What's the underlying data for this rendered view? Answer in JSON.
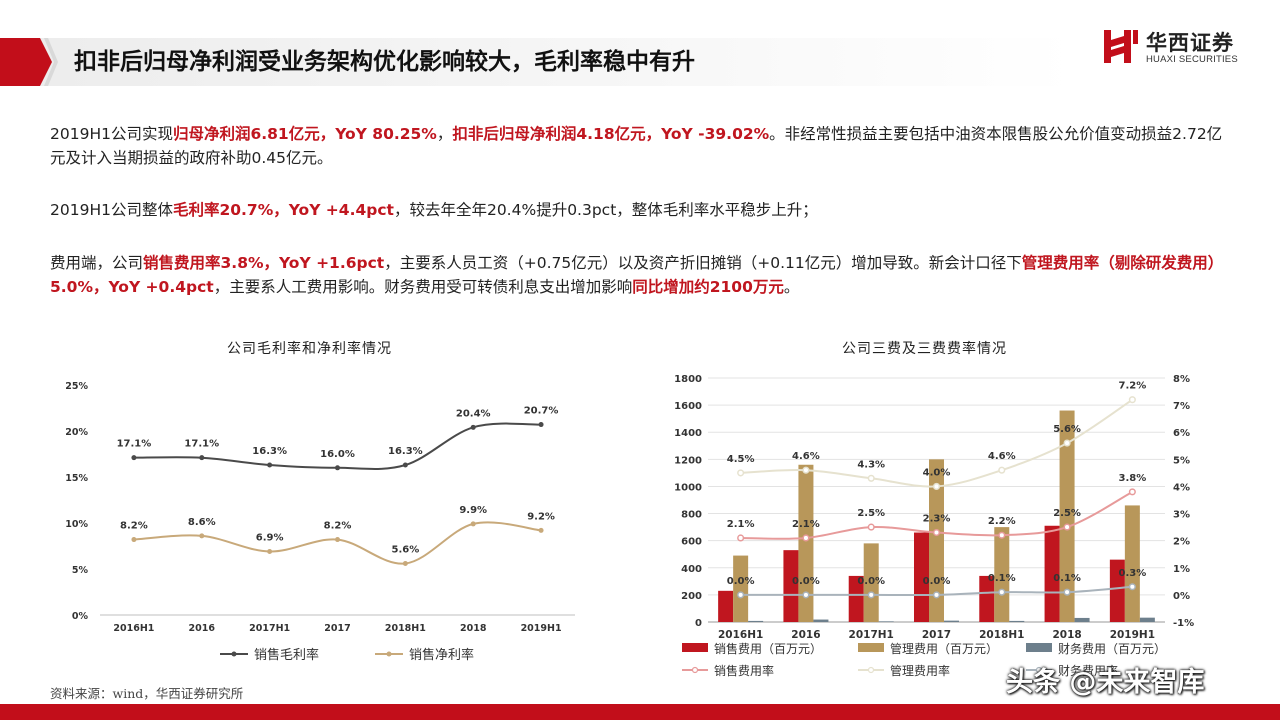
{
  "header": {
    "title": "扣非后归母净利润受业务架构优化影响较大，毛利率稳中有升",
    "brand_cn": "华西证券",
    "brand_en": "HUAXI SECURITIES",
    "accent_color": "#c20e1a"
  },
  "paragraphs": {
    "p1": [
      {
        "t": "2019H1公司实现",
        "h": false
      },
      {
        "t": "归母净利润6.81亿元，YoY 80.25%",
        "h": true
      },
      {
        "t": "，",
        "h": false
      },
      {
        "t": "扣非后归母净利润4.18亿元，YoY -39.02%",
        "h": true
      },
      {
        "t": "。非经常性损益主要包括中油资本限售股公允价值变动损益2.72亿元及计入当期损益的政府补助0.45亿元。",
        "h": false
      }
    ],
    "p2": [
      {
        "t": "2019H1公司整体",
        "h": false
      },
      {
        "t": "毛利率20.7%，YoY +4.4pct",
        "h": true
      },
      {
        "t": "，较去年全年20.4%提升0.3pct，整体毛利率水平稳步上升；",
        "h": false
      }
    ],
    "p3": [
      {
        "t": "费用端，公司",
        "h": false
      },
      {
        "t": "销售费用率3.8%，YoY +1.6pct",
        "h": true
      },
      {
        "t": "，主要系人员工资（+0.75亿元）以及资产折旧摊销（+0.11亿元）增加导致。新会计口径下",
        "h": false
      },
      {
        "t": "管理费用率（剔除研发费用）5.0%，YoY +0.4pct",
        "h": true
      },
      {
        "t": "，主要系人工费用影响。财务费用受可转债利息支出增加影响",
        "h": false
      },
      {
        "t": "同比增加约2100万元",
        "h": true
      },
      {
        "t": "。",
        "h": false
      }
    ]
  },
  "source": "资料来源：wind，华西证券研究所",
  "watermark": "头条 @未来智库",
  "chart_data": [
    {
      "type": "line",
      "title": "公司毛利率和净利率情况",
      "categories": [
        "2016H1",
        "2016",
        "2017H1",
        "2017",
        "2018H1",
        "2018",
        "2019H1"
      ],
      "series": [
        {
          "name": "销售毛利率",
          "values": [
            17.1,
            17.1,
            16.3,
            16.0,
            16.3,
            20.4,
            20.7
          ],
          "labels": [
            "17.1%",
            "17.1%",
            "16.3%",
            "16.0%",
            "16.3%",
            "20.4%",
            "20.7%"
          ],
          "color": "#4a4a4a"
        },
        {
          "name": "销售净利率",
          "values": [
            8.2,
            8.6,
            6.9,
            8.2,
            5.6,
            9.9,
            9.2
          ],
          "labels": [
            "8.2%",
            "8.6%",
            "6.9%",
            "8.2%",
            "5.6%",
            "9.9%",
            "9.2%"
          ],
          "color": "#c8a97a"
        }
      ],
      "ylim": [
        0,
        25
      ],
      "yticks": [
        "0%",
        "5%",
        "10%",
        "15%",
        "20%",
        "25%"
      ],
      "grid": false,
      "legend": "bottom"
    },
    {
      "type": "bar",
      "title": "公司三费及三费费率情况",
      "categories": [
        "2016H1",
        "2016",
        "2017H1",
        "2017",
        "2018H1",
        "2018",
        "2019H1"
      ],
      "bar_series": [
        {
          "name": "销售费用（百万元）",
          "values": [
            230,
            530,
            340,
            660,
            340,
            710,
            460
          ],
          "color": "#c0161f"
        },
        {
          "name": "管理费用（百万元）",
          "values": [
            490,
            1160,
            580,
            1200,
            700,
            1560,
            860
          ],
          "color": "#b8975a"
        },
        {
          "name": "财务费用（百万元）",
          "values": [
            8,
            18,
            5,
            10,
            8,
            30,
            32
          ],
          "color": "#6d7f8c"
        }
      ],
      "line_series": [
        {
          "name": "销售费用率",
          "values": [
            2.1,
            2.1,
            2.5,
            2.3,
            2.2,
            2.5,
            3.8
          ],
          "labels": [
            "2.1%",
            "2.1%",
            "2.5%",
            "2.3%",
            "2.2%",
            "2.5%",
            "3.8%"
          ],
          "color": "#e79a9a"
        },
        {
          "name": "管理费用率",
          "values": [
            4.5,
            4.6,
            4.3,
            4.0,
            4.6,
            5.6,
            7.2
          ],
          "labels": [
            "4.5%",
            "4.6%",
            "4.3%",
            "4.0%",
            "4.6%",
            "5.6%",
            "7.2%"
          ],
          "color": "#e6e2cf"
        },
        {
          "name": "财务费用率",
          "values": [
            0.0,
            0.0,
            0.0,
            0.0,
            0.1,
            0.1,
            0.3
          ],
          "labels": [
            "0.0%",
            "0.0%",
            "0.0%",
            "0.0%",
            "0.1%",
            "0.1%",
            "0.3%"
          ],
          "color": "#a9b3bb"
        }
      ],
      "ylim_left": [
        0,
        1800
      ],
      "yticks_left": [
        "0",
        "200",
        "400",
        "600",
        "800",
        "1000",
        "1200",
        "1400",
        "1600",
        "1800"
      ],
      "ylim_right": [
        -1,
        8
      ],
      "yticks_right": [
        "-1%",
        "0%",
        "1%",
        "2%",
        "3%",
        "4%",
        "5%",
        "6%",
        "7%",
        "8%"
      ],
      "grid": true,
      "legend": "bottom"
    }
  ]
}
